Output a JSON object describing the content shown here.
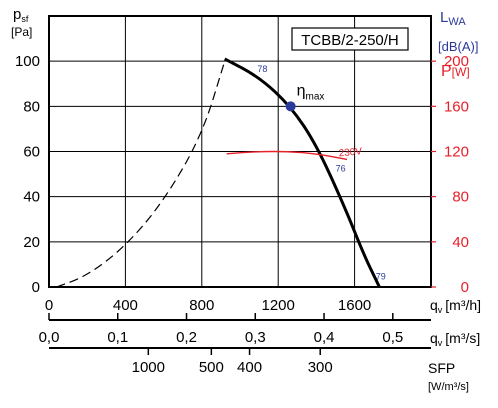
{
  "chart_data": {
    "type": "line",
    "title": "TCBB/2-250/H",
    "left_axis": {
      "label_main": "p",
      "label_sub": "sf",
      "unit": "[Pa]",
      "ticks": [
        "0",
        "20",
        "40",
        "60",
        "80",
        "100"
      ],
      "range": [
        0,
        120
      ]
    },
    "right_axis_lwa": {
      "label_main": "L",
      "label_sub": "WA",
      "unit": "[dB(A)]",
      "color": "#2a3a9a"
    },
    "right_axis_power": {
      "label": "P",
      "unit": "[W]",
      "ticks": [
        "0",
        "40",
        "80",
        "120",
        "160",
        "200"
      ],
      "range": [
        0,
        240
      ],
      "color": "#e8202a"
    },
    "x_axis_m3h": {
      "ticks": [
        "0",
        "400",
        "800",
        "1200",
        "1600"
      ],
      "label_main": "q",
      "label_sub": "v",
      "unit": "[m³/h]",
      "range": [
        0,
        2000
      ]
    },
    "x_axis_m3s": {
      "ticks": [
        "0,0",
        "0,1",
        "0,2",
        "0,3",
        "0,4",
        "0,5"
      ],
      "label_main": "q",
      "label_sub": "v",
      "unit": "[m³/s]"
    },
    "sfp_axis": {
      "label": "SFP",
      "unit": "[W/m³/s]",
      "ticks": [
        "1000",
        "500",
        "400",
        "300"
      ]
    },
    "series": [
      {
        "role": "system-curve-dashed",
        "x": [
          40,
          200,
          400,
          600,
          800,
          920
        ],
        "y": [
          0,
          5,
          18,
          38,
          67,
          100
        ]
      },
      {
        "role": "fan-curve",
        "x": [
          920,
          1100,
          1265,
          1400,
          1550,
          1650,
          1730
        ],
        "y": [
          101,
          93,
          80,
          63,
          35,
          14,
          0
        ]
      },
      {
        "name": "230V",
        "role": "power-curve",
        "x": [
          930,
          1100,
          1250,
          1400,
          1560
        ],
        "y": [
          118,
          120,
          120,
          118,
          113
        ]
      }
    ],
    "sound_labels": [
      "78",
      "76",
      "79"
    ],
    "sound_points": [
      {
        "x": 1070,
        "y": 97
      },
      {
        "x": 1480,
        "y": 53
      },
      {
        "x": 1690,
        "y": 5
      }
    ],
    "efficiency_point": {
      "label_main": "η",
      "label_sub": "max",
      "x": 1265,
      "y": 80
    },
    "grid": true
  }
}
